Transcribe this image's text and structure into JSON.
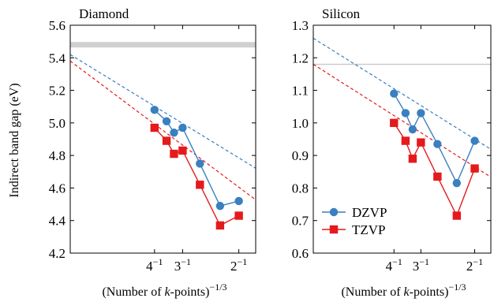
{
  "chart_data": [
    {
      "type": "line",
      "title": "Diamond",
      "xlabel": "(Number of k-points)^(-1/3)",
      "xlabel_parts": {
        "pre": "(Number of ",
        "k": "k",
        "post": "-points)",
        "exp": "−1/3"
      },
      "ylabel": "Indirect band gap (eV)",
      "xlim": [
        0,
        0.55
      ],
      "ylim": [
        4.2,
        5.6
      ],
      "yticks": [
        4.2,
        4.4,
        4.6,
        4.8,
        5.0,
        5.2,
        5.4,
        5.6
      ],
      "ytick_labels": [
        "4.2",
        "4.4",
        "4.6",
        "4.8",
        "5.0",
        "5.2",
        "5.4",
        "5.6"
      ],
      "xticks": [
        {
          "value": 0.25,
          "base": "4",
          "exp": "−1"
        },
        {
          "value": 0.3333,
          "base": "3",
          "exp": "−1"
        },
        {
          "value": 0.5,
          "base": "2",
          "exp": "−1"
        }
      ],
      "reference_band": {
        "value": 5.48,
        "color": "#d0d0d0"
      },
      "series": [
        {
          "name": "DZVP",
          "color": "#3a7fbf",
          "marker": "circle",
          "x": [
            0.25,
            0.2857,
            0.3077,
            0.3333,
            0.3846,
            0.4444,
            0.5
          ],
          "y": [
            5.08,
            5.01,
            4.94,
            4.97,
            4.75,
            4.49,
            4.52
          ],
          "extrapolation": {
            "y0": 5.42,
            "slope": -1.27
          }
        },
        {
          "name": "TZVP",
          "color": "#e41a1c",
          "marker": "square",
          "x": [
            0.25,
            0.2857,
            0.3077,
            0.3333,
            0.3846,
            0.4444,
            0.5
          ],
          "y": [
            4.97,
            4.89,
            4.81,
            4.83,
            4.62,
            4.37,
            4.43
          ],
          "extrapolation": {
            "y0": 5.38,
            "slope": -1.55
          }
        }
      ]
    },
    {
      "type": "line",
      "title": "Silicon",
      "xlabel": "(Number of k-points)^(-1/3)",
      "xlabel_parts": {
        "pre": "(Number of ",
        "k": "k",
        "post": "-points)",
        "exp": "−1/3"
      },
      "ylabel": "",
      "xlim": [
        0,
        0.55
      ],
      "ylim": [
        0.6,
        1.3
      ],
      "yticks": [
        0.6,
        0.7,
        0.8,
        0.9,
        1.0,
        1.1,
        1.2,
        1.3
      ],
      "ytick_labels": [
        "0.6",
        "0.7",
        "0.8",
        "0.9",
        "1.0",
        "1.1",
        "1.2",
        "1.3"
      ],
      "xticks": [
        {
          "value": 0.25,
          "base": "4",
          "exp": "−1"
        },
        {
          "value": 0.3333,
          "base": "3",
          "exp": "−1"
        },
        {
          "value": 0.5,
          "base": "2",
          "exp": "−1"
        }
      ],
      "reference_line": {
        "value": 1.18,
        "color": "#c8c8c8"
      },
      "legend": {
        "position": "bottom-left",
        "entries": [
          "DZVP",
          "TZVP"
        ]
      },
      "series": [
        {
          "name": "DZVP",
          "color": "#3a7fbf",
          "marker": "circle",
          "x": [
            0.25,
            0.2857,
            0.3077,
            0.3333,
            0.3846,
            0.4444,
            0.5
          ],
          "y": [
            1.09,
            1.03,
            0.98,
            1.03,
            0.935,
            0.815,
            0.945
          ],
          "extrapolation": {
            "y0": 1.26,
            "slope": -0.62
          }
        },
        {
          "name": "TZVP",
          "color": "#e41a1c",
          "marker": "square",
          "x": [
            0.25,
            0.2857,
            0.3077,
            0.3333,
            0.3846,
            0.4444,
            0.5
          ],
          "y": [
            1.0,
            0.945,
            0.89,
            0.94,
            0.835,
            0.715,
            0.86
          ],
          "extrapolation": {
            "y0": 1.18,
            "slope": -0.63
          }
        }
      ]
    }
  ]
}
